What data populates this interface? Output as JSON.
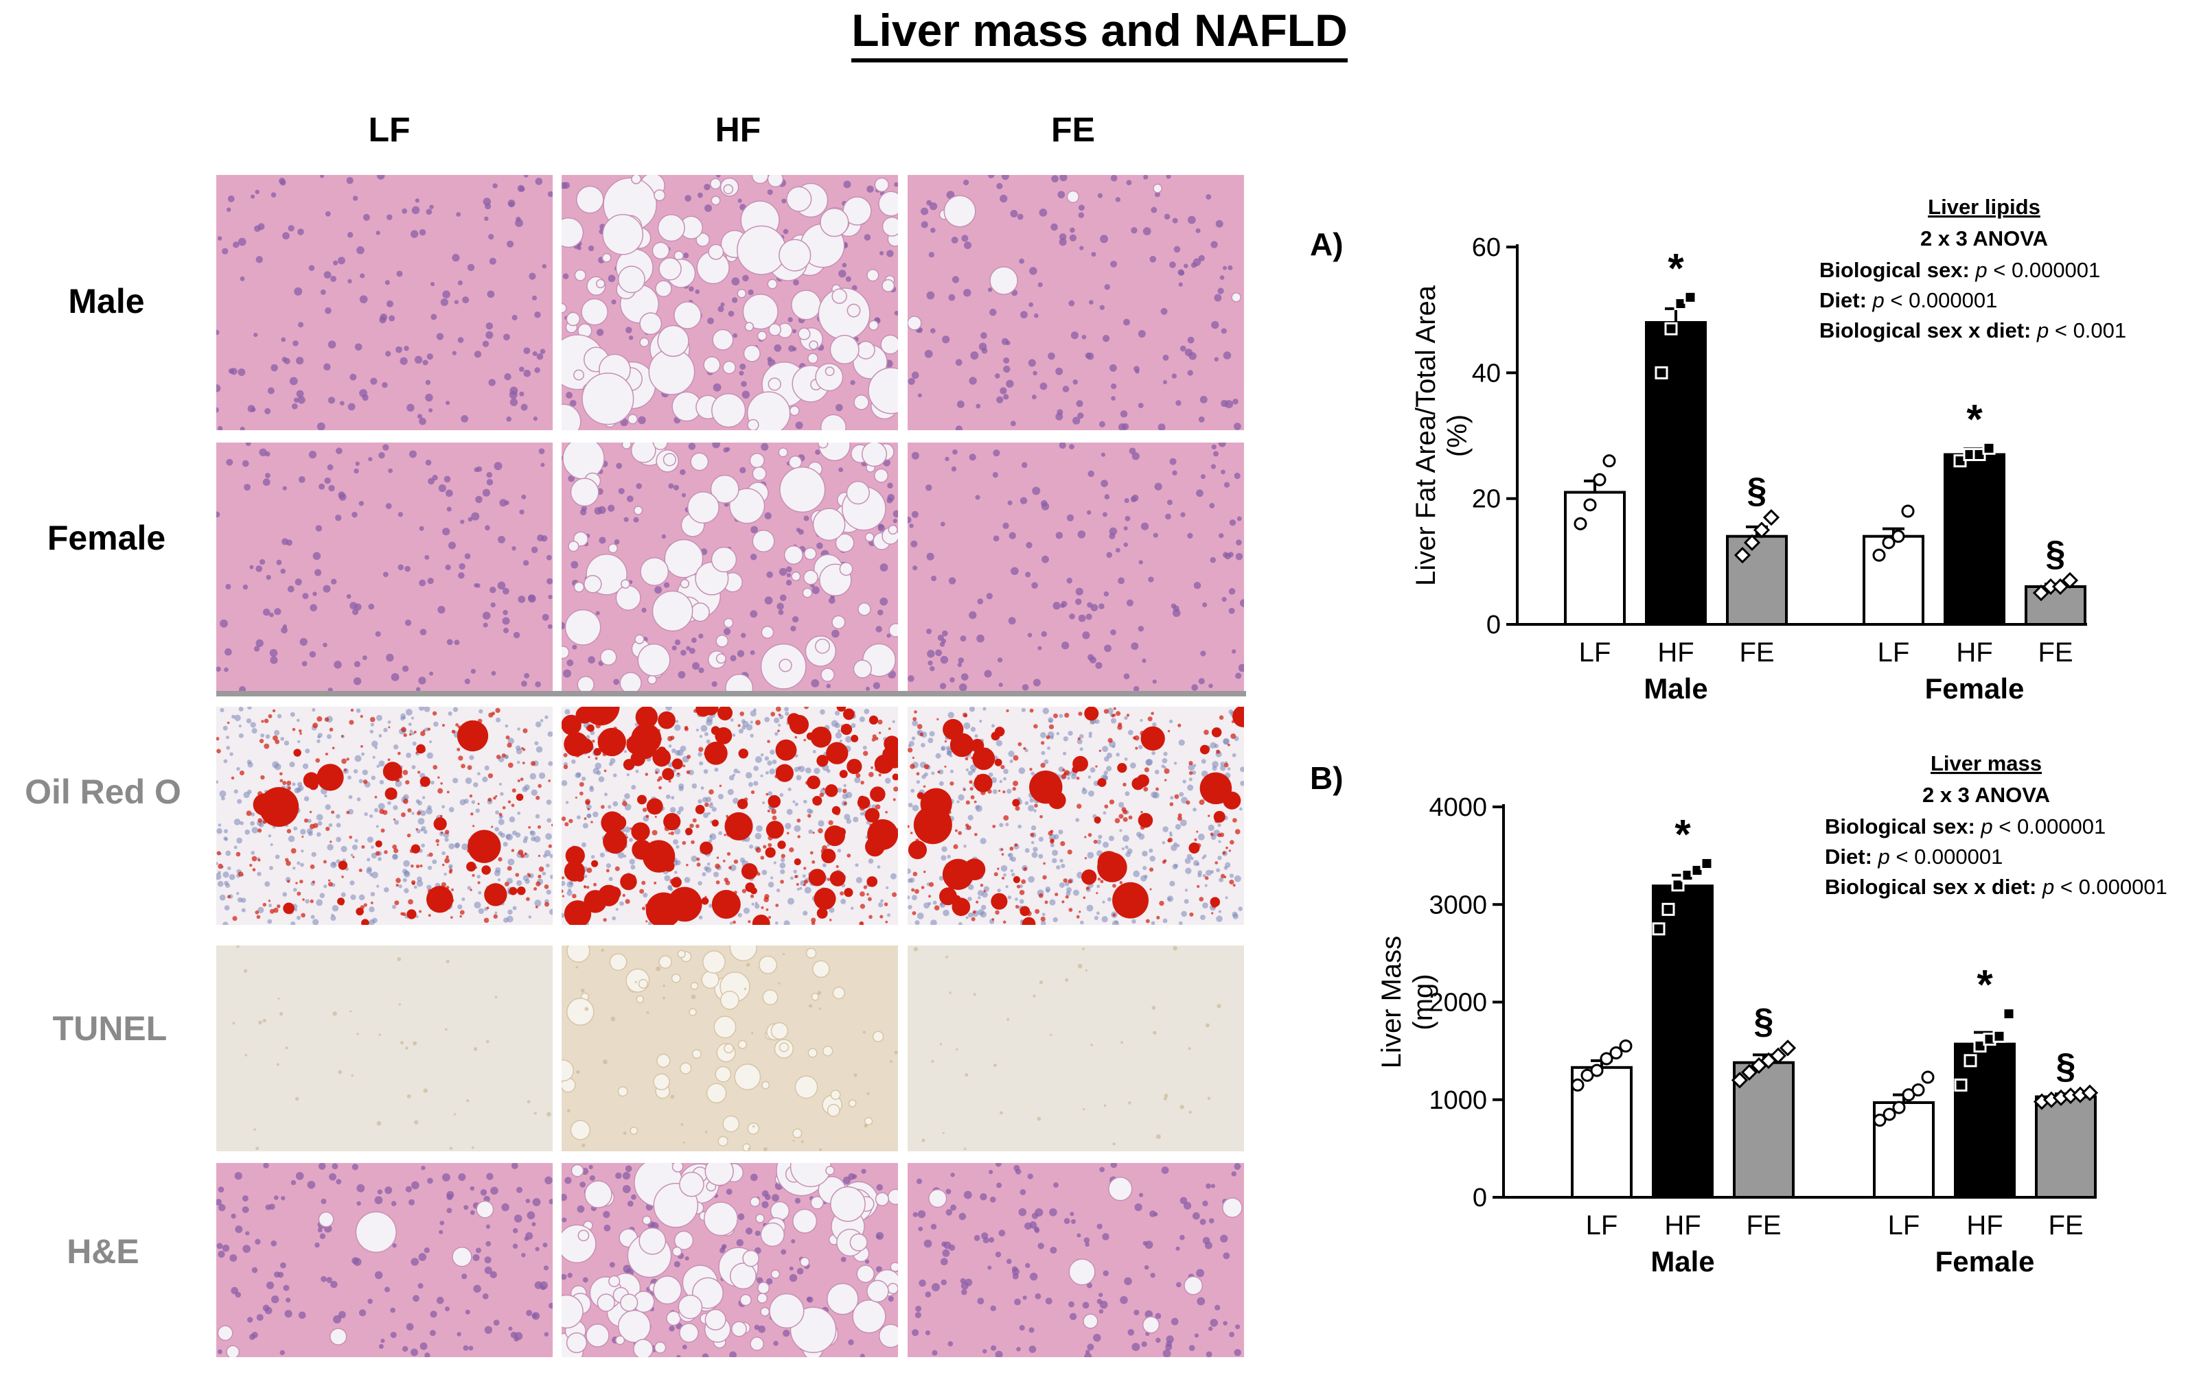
{
  "figure": {
    "title": "Liver mass and NAFLD",
    "columns": [
      "LF",
      "HF",
      "FE"
    ],
    "rows": [
      {
        "label": "Male",
        "stain": "he"
      },
      {
        "label": "Female",
        "stain": "he"
      },
      {
        "label": "Oil Red O",
        "stain": "oro"
      },
      {
        "label": "TUNEL",
        "stain": "tunel"
      },
      {
        "label": "H&E",
        "stain": "he"
      }
    ],
    "colors": {
      "he_bg": "#e3a7c6",
      "he_nuclei": "#8a5fa6",
      "oro_bg": "#f2eef2",
      "oro_fat": "#d11a0c",
      "oro_blue": "#7c86b8",
      "tunel_bg": "#e9e5dc",
      "row_label_grey": "#8a8a8a",
      "bar_hf": "#000000",
      "bar_fe": "#999999",
      "bar_lf": "#ffffff"
    }
  },
  "chart_data": [
    {
      "type": "bar",
      "panel_label": "A)",
      "ylabel": "Liver Fat Area/Total Area\n(%)",
      "ylim": [
        0,
        60
      ],
      "yticks": [
        0,
        20,
        40,
        60
      ],
      "groups": [
        "Male",
        "Female"
      ],
      "categories": [
        "LF",
        "HF",
        "FE"
      ],
      "series": [
        {
          "group": "Male",
          "values": [
            21,
            48,
            14
          ],
          "sem": [
            1.8,
            2.2,
            1.5
          ],
          "points": [
            [
              16,
              19,
              23,
              26
            ],
            [
              40,
              47,
              51,
              52
            ],
            [
              11,
              13,
              15,
              17
            ]
          ],
          "annotations": [
            "",
            "*",
            "§"
          ]
        },
        {
          "group": "Female",
          "values": [
            14,
            27,
            6
          ],
          "sem": [
            1.2,
            0.9,
            0.4
          ],
          "points": [
            [
              11,
              13,
              14,
              18
            ],
            [
              26,
              27,
              27,
              28
            ],
            [
              5,
              6,
              6,
              7
            ]
          ],
          "annotations": [
            "",
            "*",
            "§"
          ]
        }
      ],
      "stats": {
        "title": "Liver lipids",
        "subtitle": "2 x 3 ANOVA",
        "lines": [
          {
            "bold": "Biological sex:",
            "p": "p",
            "rest": " < 0.000001"
          },
          {
            "bold": "Diet:",
            "p": "p",
            "rest": " < 0.000001"
          },
          {
            "bold": "Biological sex x diet:",
            "p": "p",
            "rest": " < 0.001"
          }
        ]
      }
    },
    {
      "type": "bar",
      "panel_label": "B)",
      "ylabel": "Liver Mass\n(mg)",
      "ylim": [
        0,
        4000
      ],
      "yticks": [
        0,
        1000,
        2000,
        3000,
        4000
      ],
      "groups": [
        "Male",
        "Female"
      ],
      "categories": [
        "LF",
        "HF",
        "FE"
      ],
      "series": [
        {
          "group": "Male",
          "values": [
            1330,
            3190,
            1380
          ],
          "sem": [
            70,
            110,
            80
          ],
          "points": [
            [
              1150,
              1250,
              1300,
              1420,
              1480,
              1550
            ],
            [
              2750,
              2950,
              3200,
              3300,
              3350,
              3420
            ],
            [
              1200,
              1280,
              1350,
              1400,
              1450,
              1530
            ]
          ],
          "annotations": [
            "",
            "*",
            "§"
          ]
        },
        {
          "group": "Female",
          "values": [
            970,
            1570,
            1030
          ],
          "sem": [
            80,
            120,
            30
          ],
          "points": [
            [
              790,
              850,
              920,
              1050,
              1100,
              1230
            ],
            [
              1150,
              1400,
              1550,
              1620,
              1650,
              1880
            ],
            [
              980,
              1000,
              1020,
              1040,
              1050,
              1070
            ]
          ],
          "annotations": [
            "",
            "*",
            "§"
          ]
        }
      ],
      "stats": {
        "title": "Liver mass",
        "subtitle": "2 x 3 ANOVA",
        "lines": [
          {
            "bold": "Biological sex:",
            "p": "p",
            "rest": " < 0.000001"
          },
          {
            "bold": "Diet:",
            "p": "p",
            "rest": " < 0.000001"
          },
          {
            "bold": "Biological sex x diet:",
            "p": "p",
            "rest": " < 0.000001"
          }
        ]
      }
    }
  ]
}
